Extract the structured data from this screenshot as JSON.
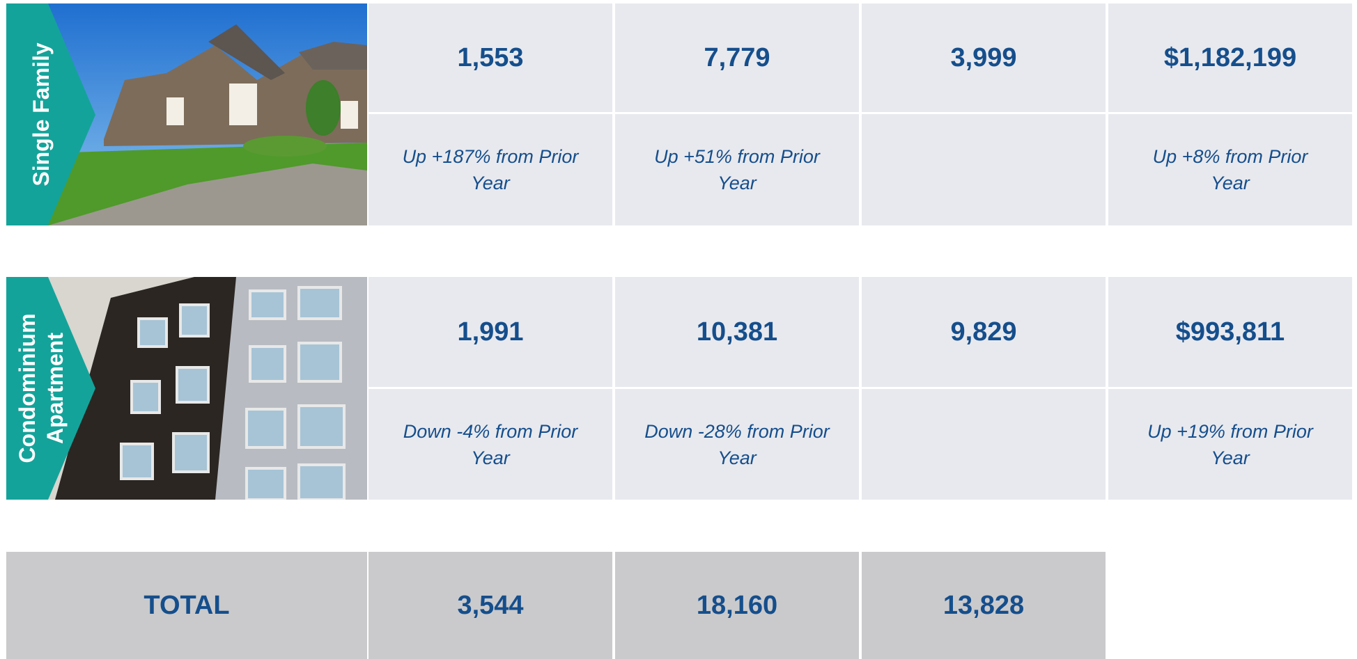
{
  "rows": [
    {
      "label": "Single Family",
      "values": [
        "1,553",
        "7,779",
        "3,999",
        "$1,182,199"
      ],
      "notes": [
        "Up +187% from Prior Year",
        "Up +51% from Prior Year",
        null,
        "Up +8% from Prior Year"
      ]
    },
    {
      "label": "Condominium Apartment",
      "values": [
        "1,991",
        "10,381",
        "9,829",
        "$993,811"
      ],
      "notes": [
        "Down -4% from Prior Year",
        "Down -28% from Prior Year",
        null,
        "Up +19% from Prior Year"
      ]
    }
  ],
  "total": {
    "label": "TOTAL",
    "values": [
      "3,544",
      "18,160",
      "13,828"
    ]
  }
}
